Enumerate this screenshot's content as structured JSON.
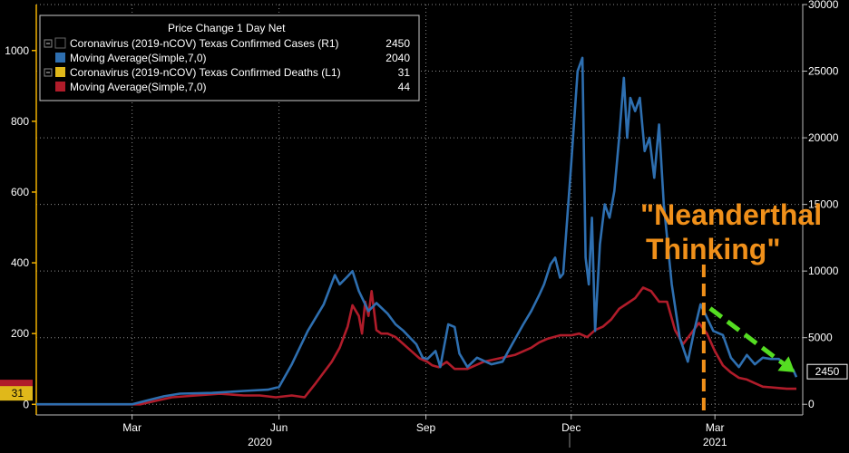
{
  "chart_data": {
    "type": "line",
    "legend": {
      "header": "Price Change 1 Day Net",
      "placement": "top-left",
      "entries": [
        {
          "label": "Coronavirus (2019-nCOV) Texas Confirmed Cases (R1)",
          "value": "2450",
          "color": "#000000"
        },
        {
          "label": "Moving Average(Simple,7,0)",
          "value": "2040",
          "color": "#2e6fb0"
        },
        {
          "label": "Coronavirus (2019-nCOV) Texas Confirmed Deaths (L1)",
          "value": "31",
          "color": "#e0b81a"
        },
        {
          "label": "Moving Average(Simple,7,0)",
          "value": "44",
          "color": "#b01c2a"
        }
      ]
    },
    "x_axis": {
      "ticks": [
        {
          "label": "Mar",
          "t": 30
        },
        {
          "label": "Jun",
          "t": 122
        },
        {
          "label": "Sep",
          "t": 214
        },
        {
          "label": "Dec",
          "t": 305
        },
        {
          "label": "Mar",
          "t": 395
        }
      ],
      "years": [
        {
          "label": "2020",
          "t": 110
        },
        {
          "label": "2021",
          "t": 395
        }
      ],
      "range_days": [
        -30,
        450
      ]
    },
    "y_left": {
      "ticks": [
        0,
        200,
        400,
        600,
        800,
        1000
      ],
      "ylim": [
        -30,
        1130
      ],
      "units": "deaths"
    },
    "y_right": {
      "ticks": [
        0,
        5000,
        10000,
        15000,
        20000,
        25000,
        30000
      ],
      "ylim": [
        -800,
        30000
      ],
      "units": "cases"
    },
    "grid": true,
    "series": [
      {
        "name": "Moving Average(Simple,7,0)",
        "axis": "right",
        "color": "#2e6fb0",
        "points": [
          [
            -30,
            0
          ],
          [
            30,
            0
          ],
          [
            40,
            300
          ],
          [
            50,
            600
          ],
          [
            60,
            800
          ],
          [
            80,
            850
          ],
          [
            100,
            1000
          ],
          [
            115,
            1100
          ],
          [
            122,
            1300
          ],
          [
            130,
            3000
          ],
          [
            140,
            5500
          ],
          [
            150,
            7500
          ],
          [
            157,
            9700
          ],
          [
            160,
            9000
          ],
          [
            165,
            9600
          ],
          [
            168,
            10000
          ],
          [
            172,
            8500
          ],
          [
            178,
            7000
          ],
          [
            183,
            7600
          ],
          [
            190,
            6800
          ],
          [
            195,
            6000
          ],
          [
            200,
            5500
          ],
          [
            208,
            4500
          ],
          [
            212,
            3500
          ],
          [
            215,
            3400
          ],
          [
            220,
            4000
          ],
          [
            223,
            2800
          ],
          [
            228,
            6000
          ],
          [
            232,
            5800
          ],
          [
            235,
            3800
          ],
          [
            240,
            2800
          ],
          [
            246,
            3500
          ],
          [
            255,
            3000
          ],
          [
            262,
            3200
          ],
          [
            268,
            4500
          ],
          [
            275,
            6000
          ],
          [
            280,
            7000
          ],
          [
            285,
            8200
          ],
          [
            288,
            9000
          ],
          [
            292,
            10500
          ],
          [
            295,
            11000
          ],
          [
            298,
            9500
          ],
          [
            300,
            9800
          ],
          [
            305,
            18000
          ],
          [
            309,
            25000
          ],
          [
            312,
            26000
          ],
          [
            314,
            11000
          ],
          [
            316,
            9000
          ],
          [
            318,
            14000
          ],
          [
            320,
            5500
          ],
          [
            323,
            12000
          ],
          [
            326,
            15000
          ],
          [
            329,
            14000
          ],
          [
            332,
            16000
          ],
          [
            335,
            20000
          ],
          [
            338,
            24500
          ],
          [
            340,
            20000
          ],
          [
            342,
            23000
          ],
          [
            345,
            22000
          ],
          [
            348,
            23000
          ],
          [
            351,
            19000
          ],
          [
            354,
            20000
          ],
          [
            357,
            17000
          ],
          [
            360,
            21000
          ],
          [
            363,
            15000
          ],
          [
            368,
            9000
          ],
          [
            373,
            5000
          ],
          [
            378,
            3200
          ],
          [
            382,
            5500
          ],
          [
            386,
            7500
          ],
          [
            390,
            6500
          ],
          [
            394,
            5500
          ],
          [
            400,
            5200
          ],
          [
            405,
            3500
          ],
          [
            410,
            2800
          ],
          [
            415,
            3700
          ],
          [
            420,
            3000
          ],
          [
            425,
            3500
          ],
          [
            430,
            3400
          ],
          [
            435,
            3400
          ],
          [
            440,
            2800
          ],
          [
            444,
            2600
          ],
          [
            446,
            2040
          ]
        ]
      },
      {
        "name": "Moving Average(Simple,7,0)",
        "axis": "left",
        "color": "#b01c2a",
        "points": [
          [
            -30,
            0
          ],
          [
            35,
            0
          ],
          [
            45,
            10
          ],
          [
            55,
            20
          ],
          [
            70,
            25
          ],
          [
            85,
            30
          ],
          [
            100,
            25
          ],
          [
            110,
            25
          ],
          [
            120,
            20
          ],
          [
            130,
            25
          ],
          [
            138,
            20
          ],
          [
            145,
            60
          ],
          [
            155,
            120
          ],
          [
            160,
            160
          ],
          [
            165,
            220
          ],
          [
            168,
            280
          ],
          [
            172,
            250
          ],
          [
            174,
            200
          ],
          [
            176,
            290
          ],
          [
            178,
            250
          ],
          [
            180,
            320
          ],
          [
            183,
            210
          ],
          [
            186,
            200
          ],
          [
            190,
            200
          ],
          [
            195,
            190
          ],
          [
            200,
            170
          ],
          [
            205,
            150
          ],
          [
            210,
            130
          ],
          [
            215,
            120
          ],
          [
            218,
            110
          ],
          [
            222,
            105
          ],
          [
            227,
            120
          ],
          [
            232,
            100
          ],
          [
            240,
            100
          ],
          [
            250,
            120
          ],
          [
            260,
            130
          ],
          [
            270,
            140
          ],
          [
            280,
            160
          ],
          [
            285,
            175
          ],
          [
            290,
            185
          ],
          [
            298,
            195
          ],
          [
            305,
            195
          ],
          [
            310,
            200
          ],
          [
            315,
            190
          ],
          [
            320,
            210
          ],
          [
            325,
            220
          ],
          [
            330,
            240
          ],
          [
            335,
            270
          ],
          [
            340,
            285
          ],
          [
            345,
            300
          ],
          [
            350,
            330
          ],
          [
            355,
            320
          ],
          [
            360,
            290
          ],
          [
            365,
            290
          ],
          [
            370,
            210
          ],
          [
            375,
            170
          ],
          [
            380,
            200
          ],
          [
            385,
            230
          ],
          [
            390,
            200
          ],
          [
            395,
            150
          ],
          [
            400,
            110
          ],
          [
            405,
            90
          ],
          [
            410,
            75
          ],
          [
            415,
            70
          ],
          [
            420,
            60
          ],
          [
            425,
            50
          ],
          [
            430,
            48
          ],
          [
            435,
            46
          ],
          [
            440,
            44
          ],
          [
            446,
            44
          ]
        ]
      }
    ],
    "last_value_labels": [
      {
        "text": "2450",
        "axis": "right",
        "value": 2450,
        "color": "#2e6fb0"
      },
      {
        "text": "31",
        "axis": "left",
        "value": 31,
        "color": "#e0b81a"
      }
    ],
    "annotations": {
      "text_line1": "\"Neanderthal",
      "text_line2": "Thinking\"",
      "text_color": "#f0901a",
      "vline_t": 388,
      "vline_color": "#f0901a",
      "arrow_color": "#55dd22",
      "arrow_from": [
        392,
        7200
      ],
      "arrow_to": [
        445,
        2400
      ]
    }
  }
}
